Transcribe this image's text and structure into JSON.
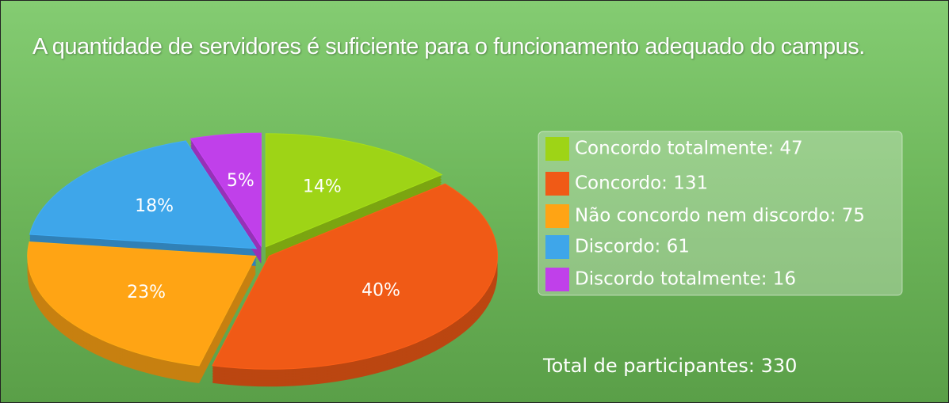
{
  "chart_data": {
    "type": "pie",
    "title": "A quantidade de servidores é suficiente para o funcionamento adequado do campus.",
    "categories": [
      "Concordo totalmente: 47",
      "Concordo: 131",
      "Não concordo nem discordo: 75",
      "Discordo: 61",
      "Discordo totalmente: 16"
    ],
    "values": [
      14,
      40,
      23,
      18,
      5
    ],
    "value_labels": [
      "14%",
      "40%",
      "23%",
      "18%",
      "5%"
    ],
    "colors": [
      "#9ed416",
      "#f05a16",
      "#ffa414",
      "#3ea6ea",
      "#c040ea"
    ],
    "legend": "right",
    "annotation": "Total de participantes: 330"
  }
}
